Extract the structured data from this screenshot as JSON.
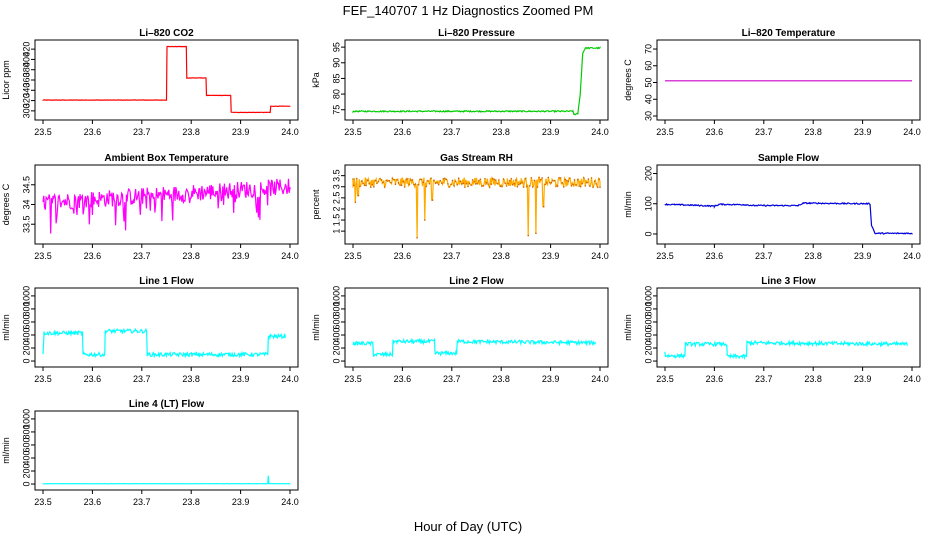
{
  "figure": {
    "title": "FEF_140707  1 Hz Diagnostics Zoomed PM",
    "xlabel": "Hour of Day (UTC)"
  },
  "chart_data": [
    {
      "id": "co2",
      "type": "line",
      "title": "Li–820 CO2",
      "ylabel": "Licor ppm",
      "color": "#ff0000",
      "noise": 0.3,
      "xlim": [
        23.5,
        24.0
      ],
      "ylim": [
        290,
        430
      ],
      "yticks": [
        300,
        320,
        340,
        360,
        380,
        400,
        420
      ],
      "x": [
        23.5,
        23.75,
        23.751,
        23.79,
        23.791,
        23.83,
        23.831,
        23.88,
        23.881,
        23.96,
        23.961,
        24.0
      ],
      "y": [
        321,
        321,
        425,
        425,
        364,
        364,
        330,
        330,
        297,
        297,
        309,
        309
      ]
    },
    {
      "id": "pressure",
      "type": "line",
      "title": "Li–820 Pressure",
      "ylabel": "kPa",
      "color": "#00cc00",
      "noise": 0.2,
      "xlim": [
        23.5,
        24.0
      ],
      "ylim": [
        73,
        96
      ],
      "yticks": [
        75,
        80,
        85,
        90,
        95
      ],
      "x": [
        23.5,
        23.945,
        23.947,
        23.955,
        23.96,
        23.965,
        23.97,
        24.0
      ],
      "y": [
        74.5,
        74.5,
        73.6,
        73.6,
        80,
        93,
        94.7,
        94.7
      ]
    },
    {
      "id": "temperature",
      "type": "line",
      "title": "Li–820 Temperature",
      "ylabel": "degrees C",
      "color": "#cc00cc",
      "noise": 0,
      "xlim": [
        23.5,
        24.0
      ],
      "ylim": [
        30,
        73
      ],
      "yticks": [
        30,
        40,
        50,
        60,
        70
      ],
      "x": [
        23.5,
        24.0
      ],
      "y": [
        51,
        51
      ]
    },
    {
      "id": "ambient",
      "type": "line",
      "title": "Ambient Box Temperature",
      "ylabel": "degrees C",
      "color": "#ff00ff",
      "noise": 0.22,
      "spikes": 0.08,
      "spike_size": -0.5,
      "xlim": [
        23.5,
        24.0
      ],
      "ylim": [
        33.1,
        34.9
      ],
      "yticks": [
        33.5,
        34.0,
        34.5
      ],
      "x": [
        23.5,
        24.0
      ],
      "y": [
        34.05,
        34.45
      ]
    },
    {
      "id": "rh",
      "type": "line",
      "title": "Gas Stream RH",
      "ylabel": "percent",
      "color": "#ffaa00",
      "noise": 0.22,
      "dots": true,
      "dots_color": "#cc6600",
      "xlim": [
        23.5,
        24.0
      ],
      "ylim": [
        0.6,
        3.8
      ],
      "yticks": [
        1.0,
        1.5,
        2.0,
        2.5,
        3.0,
        3.5
      ],
      "x": [
        23.5,
        24.0
      ],
      "y": [
        3.2,
        3.2
      ],
      "dips": [
        [
          23.505,
          2.3
        ],
        [
          23.51,
          2.6
        ],
        [
          23.63,
          0.7
        ],
        [
          23.645,
          1.5
        ],
        [
          23.66,
          2.4
        ],
        [
          23.855,
          0.8
        ],
        [
          23.87,
          0.9
        ],
        [
          23.885,
          2.1
        ]
      ]
    },
    {
      "id": "sample",
      "type": "line",
      "title": "Sample Flow",
      "ylabel": "ml/min",
      "color": "#0000dd",
      "noise": 2,
      "xlim": [
        23.5,
        24.0
      ],
      "ylim": [
        -20,
        215
      ],
      "yticks": [
        0,
        100,
        200
      ],
      "x": [
        23.5,
        23.56,
        23.6,
        23.61,
        23.66,
        23.68,
        23.77,
        23.78,
        23.915,
        23.918,
        23.925,
        24.0
      ],
      "y": [
        98,
        95,
        92,
        98,
        97,
        94,
        94,
        102,
        100,
        30,
        2,
        2
      ]
    },
    {
      "id": "line1",
      "type": "line",
      "title": "Line 1 Flow",
      "ylabel": "ml/min",
      "color": "#00ffff",
      "noise": 30,
      "xlim": [
        23.5,
        24.0
      ],
      "ylim": [
        -30,
        1060
      ],
      "yticks": [
        0,
        200,
        400,
        600,
        800,
        1000
      ],
      "x": [
        23.5,
        23.502,
        23.58,
        23.581,
        23.625,
        23.626,
        23.71,
        23.711,
        23.955,
        23.956,
        23.99
      ],
      "y": [
        120,
        430,
        430,
        100,
        100,
        460,
        460,
        100,
        100,
        380,
        380
      ]
    },
    {
      "id": "line2",
      "type": "line",
      "title": "Line 2 Flow",
      "ylabel": "ml/min",
      "color": "#00ffff",
      "noise": 28,
      "xlim": [
        23.5,
        24.0
      ],
      "ylim": [
        -30,
        1060
      ],
      "yticks": [
        0,
        200,
        400,
        600,
        800,
        1000
      ],
      "x": [
        23.5,
        23.54,
        23.541,
        23.58,
        23.581,
        23.665,
        23.666,
        23.71,
        23.711,
        23.99
      ],
      "y": [
        270,
        270,
        100,
        100,
        300,
        300,
        120,
        120,
        300,
        280
      ]
    },
    {
      "id": "line3",
      "type": "line",
      "title": "Line 3 Flow",
      "ylabel": "ml/min",
      "color": "#00ffff",
      "noise": 28,
      "xlim": [
        23.5,
        24.0
      ],
      "ylim": [
        -30,
        1060
      ],
      "yticks": [
        0,
        200,
        400,
        600,
        800,
        1000
      ],
      "x": [
        23.5,
        23.501,
        23.54,
        23.541,
        23.625,
        23.626,
        23.665,
        23.666,
        23.99
      ],
      "y": [
        140,
        80,
        80,
        260,
        260,
        70,
        70,
        280,
        260
      ]
    },
    {
      "id": "line4",
      "type": "line",
      "title": "Line 4 (LT) Flow",
      "ylabel": "ml/min",
      "color": "#00ffff",
      "noise": 2,
      "xlim": [
        23.5,
        24.0
      ],
      "ylim": [
        -30,
        1060
      ],
      "yticks": [
        0,
        200,
        400,
        600,
        800,
        1000
      ],
      "x": [
        23.5,
        23.955,
        23.956,
        23.957,
        24.0
      ],
      "y": [
        5,
        5,
        130,
        5,
        5
      ],
      "xticklabels": [
        "23.5",
        "23.6",
        "23.7",
        "23.8",
        "23.9",
        "24.0"
      ]
    }
  ],
  "xticks": [
    23.5,
    23.6,
    23.7,
    23.8,
    23.9,
    24.0
  ]
}
